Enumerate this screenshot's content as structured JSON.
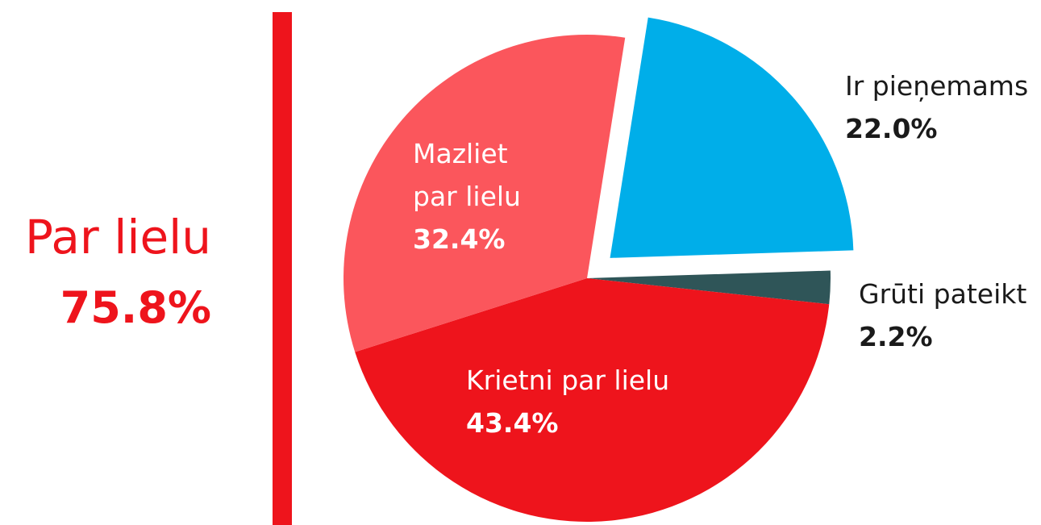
{
  "chart_data": {
    "type": "pie",
    "categories": [
      "Ir pieņemams",
      "Grūti pateikt",
      "Krietni par lielu",
      "Mazliet par lielu"
    ],
    "values": [
      22.0,
      2.2,
      43.4,
      32.4
    ],
    "value_labels": [
      "22.0%",
      "2.2%",
      "43.4%",
      "32.4%"
    ],
    "colors": [
      "#00aee9",
      "#2f5558",
      "#ee141c",
      "#fb565c"
    ],
    "annotation": {
      "label": "Par lielu",
      "value": "75.8%"
    }
  }
}
